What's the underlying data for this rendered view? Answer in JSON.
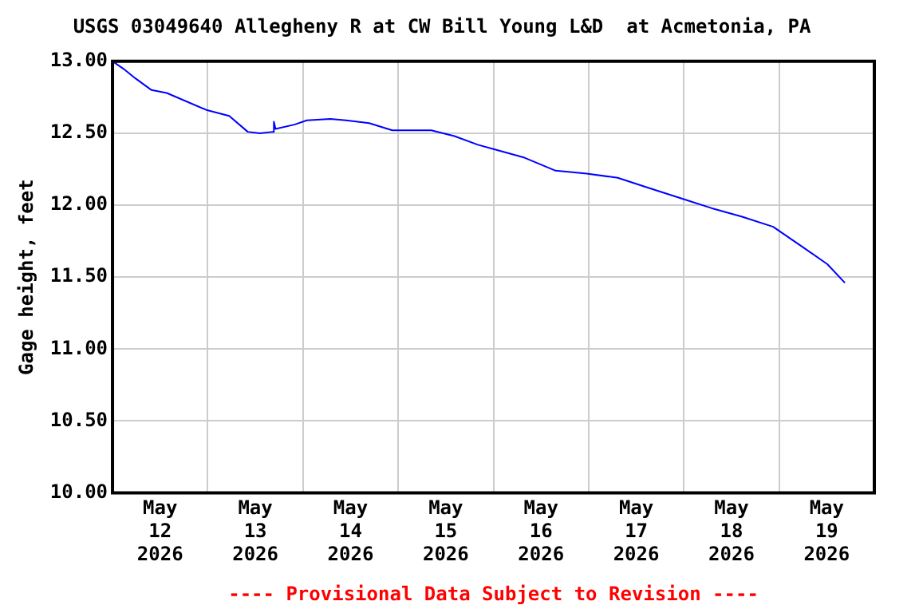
{
  "chart_data": {
    "type": "line",
    "title": "USGS 03049640 Allegheny R at CW Bill Young L&D  at Acmetonia, PA",
    "ylabel": "Gage height, feet",
    "annotations": [
      "---- Provisional Data Subject to Revision ----"
    ],
    "x": [
      "2026-05-12T00:00",
      "2026-05-12T02:40",
      "2026-05-12T05:50",
      "2026-05-12T09:50",
      "2026-05-12T13:40",
      "2026-05-12T23:50",
      "2026-05-13T05:25",
      "2026-05-13T10:05",
      "2026-05-13T13:10",
      "2026-05-13T16:25",
      "2026-05-13T16:40",
      "2026-05-13T17:05",
      "2026-05-13T21:50",
      "2026-05-14T01:00",
      "2026-05-14T06:55",
      "2026-05-14T10:50",
      "2026-05-14T16:40",
      "2026-05-14T22:30",
      "2026-05-15T08:20",
      "2026-05-15T14:10",
      "2026-05-15T20:05",
      "2026-05-16T00:00",
      "2026-05-16T07:50",
      "2026-05-16T15:40",
      "2026-05-16T23:30",
      "2026-05-17T07:20",
      "2026-05-17T15:10",
      "2026-05-17T23:00",
      "2026-05-18T06:55",
      "2026-05-18T14:40",
      "2026-05-18T22:30",
      "2026-05-19T06:25",
      "2026-05-19T12:10",
      "2026-05-19T16:35"
    ],
    "series": [
      {
        "color": "#0000ff",
        "values": [
          13.0,
          12.95,
          12.88,
          12.8,
          12.78,
          12.66,
          12.62,
          12.51,
          12.5,
          12.51,
          12.58,
          12.53,
          12.56,
          12.59,
          12.6,
          12.59,
          12.57,
          12.52,
          12.52,
          12.48,
          12.42,
          12.39,
          12.33,
          12.24,
          12.22,
          12.19,
          12.12,
          12.05,
          11.98,
          11.92,
          11.85,
          11.7,
          11.59,
          11.46
        ]
      }
    ],
    "xlim": [
      "2026-05-12",
      "2026-05-20"
    ],
    "xticks": [
      {
        "value": "2026-05-12T12:00",
        "label": "May 12 2026"
      },
      {
        "value": "2026-05-13T00:00",
        "label": null
      },
      {
        "value": "2026-05-13T12:00",
        "label": "May 13 2026"
      },
      {
        "value": "2026-05-14T00:00",
        "label": null
      },
      {
        "value": "2026-05-14T12:00",
        "label": "May 14 2026"
      },
      {
        "value": "2026-05-15T00:00",
        "label": null
      },
      {
        "value": "2026-05-15T12:00",
        "label": "May 15 2026"
      },
      {
        "value": "2026-05-16T00:00",
        "label": null
      },
      {
        "value": "2026-05-16T12:00",
        "label": "May 16 2026"
      },
      {
        "value": "2026-05-17T00:00",
        "label": null
      },
      {
        "value": "2026-05-17T12:00",
        "label": "May 17 2026"
      },
      {
        "value": "2026-05-18T00:00",
        "label": null
      },
      {
        "value": "2026-05-18T12:00",
        "label": "May 18 2026"
      },
      {
        "value": "2026-05-19T00:00",
        "label": null
      },
      {
        "value": "2026-05-19T12:00",
        "label": "May 19 2026"
      }
    ],
    "ylim": [
      10,
      13
    ],
    "yticks": [
      {
        "value": 10,
        "label": "10.00"
      },
      {
        "value": 10.5,
        "label": "10.50"
      },
      {
        "value": 11,
        "label": "11.00"
      },
      {
        "value": 11.5,
        "label": "11.50"
      },
      {
        "value": 12,
        "label": "12.00"
      },
      {
        "value": 12.5,
        "label": "12.50"
      },
      {
        "value": 13,
        "label": "13.00"
      }
    ],
    "grid": true,
    "legend": false,
    "marker": "none",
    "line_style": "solid"
  }
}
